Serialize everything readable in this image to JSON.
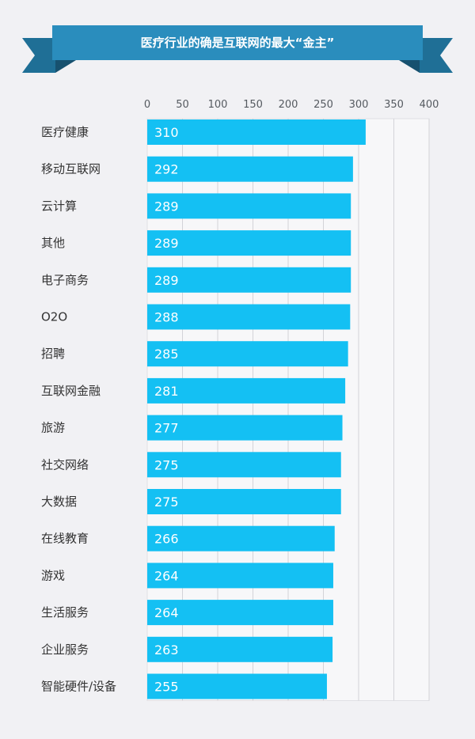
{
  "colors": {
    "background": "#f1f1f4",
    "plot_background": "#f7f7f9",
    "banner": "#2a8dbd",
    "banner_tail": "#1f6f96",
    "banner_fold": "#17516f",
    "bar": "#14c0f3",
    "grid": "#d3d3d8"
  },
  "chart_data": {
    "type": "bar",
    "orientation": "horizontal",
    "title": "医疗行业的确是互联网的最大“金主”",
    "xlim": [
      0,
      400
    ],
    "xticks": [
      0,
      50,
      100,
      150,
      200,
      250,
      300,
      350,
      400
    ],
    "xtick_labels": [
      "0",
      "50",
      "100",
      "150",
      "200",
      "250",
      "300",
      "350",
      "400"
    ],
    "grid": true,
    "categories": [
      "医疗健康",
      "移动互联网",
      "云计算",
      "其他",
      "电子商务",
      "O2O",
      "招聘",
      "互联网金融",
      "旅游",
      "社交网络",
      "大数据",
      "在线教育",
      "游戏",
      "生活服务",
      "企业服务",
      "智能硬件/设备"
    ],
    "values": [
      310,
      292,
      289,
      289,
      289,
      288,
      285,
      281,
      277,
      275,
      275,
      266,
      264,
      264,
      263,
      255
    ],
    "value_labels": [
      "310",
      "292",
      "289",
      "289",
      "289",
      "288",
      "285",
      "281",
      "277",
      "275",
      "275",
      "266",
      "264",
      "264",
      "263",
      "255"
    ]
  }
}
